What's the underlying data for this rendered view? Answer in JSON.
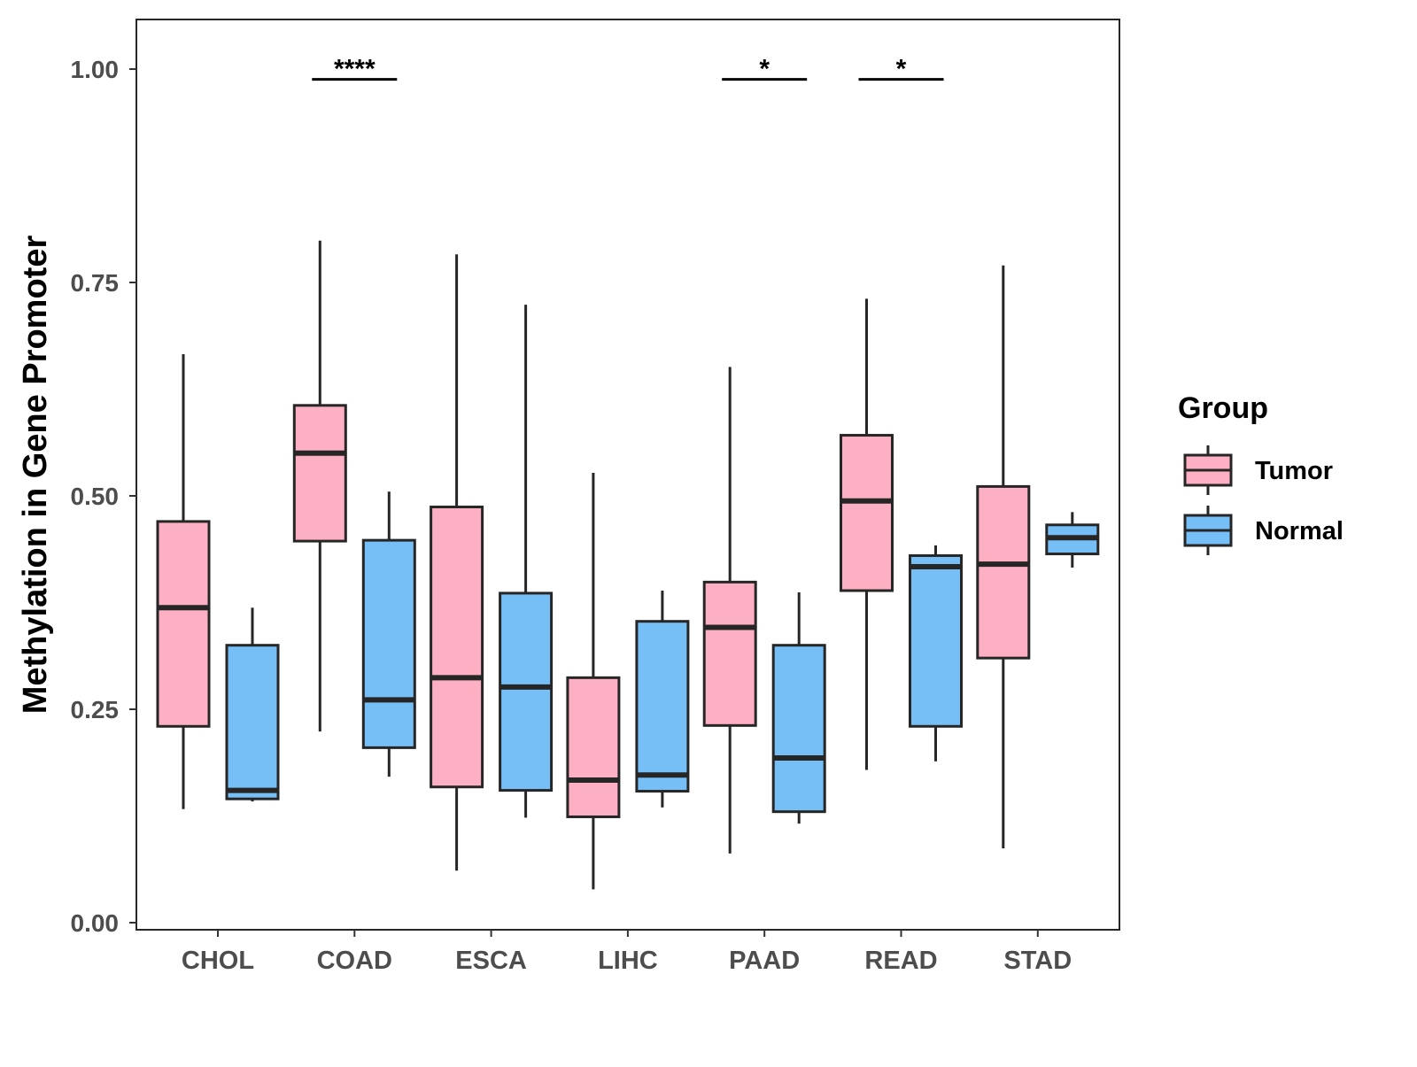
{
  "chart_data": {
    "type": "box",
    "title": "",
    "xlabel": "",
    "ylabel": "Methylation in Gene Promoter",
    "ylim": [
      -0.015,
      1.06
    ],
    "yticks": [
      "0.00",
      "0.25",
      "0.50",
      "0.75",
      "1.00"
    ],
    "ytick_values": [
      0,
      0.25,
      0.5,
      0.75,
      1.0
    ],
    "categories": [
      "CHOL",
      "COAD",
      "ESCA",
      "LIHC",
      "PAAD",
      "READ",
      "STAD"
    ],
    "legend": {
      "title": "Group",
      "placement": "right",
      "entries": [
        "Tumor",
        "Normal"
      ]
    },
    "colors": {
      "Tumor": "#FDB0C3",
      "Normal": "#76BFF6",
      "stroke": "#262626"
    },
    "series": [
      {
        "name": "Tumor",
        "boxes": [
          {
            "low": 0.133,
            "q1": 0.23,
            "median": 0.369,
            "q3": 0.47,
            "high": 0.666
          },
          {
            "low": 0.224,
            "q1": 0.447,
            "median": 0.55,
            "q3": 0.606,
            "high": 0.799
          },
          {
            "low": 0.061,
            "q1": 0.159,
            "median": 0.287,
            "q3": 0.487,
            "high": 0.783
          },
          {
            "low": 0.039,
            "q1": 0.124,
            "median": 0.167,
            "q3": 0.287,
            "high": 0.527
          },
          {
            "low": 0.081,
            "q1": 0.231,
            "median": 0.346,
            "q3": 0.399,
            "high": 0.651
          },
          {
            "low": 0.179,
            "q1": 0.389,
            "median": 0.494,
            "q3": 0.571,
            "high": 0.731
          },
          {
            "low": 0.087,
            "q1": 0.31,
            "median": 0.42,
            "q3": 0.511,
            "high": 0.77
          }
        ]
      },
      {
        "name": "Normal",
        "boxes": [
          {
            "low": 0.142,
            "q1": 0.145,
            "median": 0.155,
            "q3": 0.325,
            "high": 0.369
          },
          {
            "low": 0.171,
            "q1": 0.205,
            "median": 0.261,
            "q3": 0.448,
            "high": 0.505
          },
          {
            "low": 0.123,
            "q1": 0.155,
            "median": 0.276,
            "q3": 0.386,
            "high": 0.724
          },
          {
            "low": 0.135,
            "q1": 0.154,
            "median": 0.173,
            "q3": 0.353,
            "high": 0.389
          },
          {
            "low": 0.116,
            "q1": 0.13,
            "median": 0.193,
            "q3": 0.325,
            "high": 0.387
          },
          {
            "low": 0.189,
            "q1": 0.23,
            "median": 0.417,
            "q3": 0.43,
            "high": 0.442
          },
          {
            "low": 0.416,
            "q1": 0.432,
            "median": 0.451,
            "q3": 0.466,
            "high": 0.481
          }
        ]
      }
    ],
    "annotations": [
      {
        "category": "COAD",
        "label": "****",
        "y": 0.988
      },
      {
        "category": "PAAD",
        "label": "*",
        "y": 0.988
      },
      {
        "category": "READ",
        "label": "*",
        "y": 0.988
      }
    ]
  }
}
